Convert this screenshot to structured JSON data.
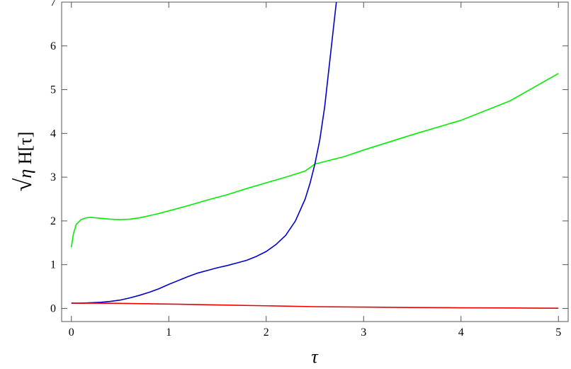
{
  "chart_data": {
    "type": "line",
    "title": "",
    "xlabel": "τ",
    "ylabel": {
      "root_symbol": "√",
      "radicand": "η",
      "rest": " H[τ]"
    },
    "xlim": [
      -0.1,
      5.1
    ],
    "ylim": [
      -0.3,
      7
    ],
    "x_ticks": [
      0,
      1,
      2,
      3,
      4,
      5
    ],
    "y_ticks": [
      0,
      1,
      2,
      3,
      4,
      5,
      6,
      7
    ],
    "grid": false,
    "legend": "none",
    "series": [
      {
        "color": "#00ee00",
        "points": [
          [
            0.0,
            1.4
          ],
          [
            0.02,
            1.7
          ],
          [
            0.05,
            1.92
          ],
          [
            0.1,
            2.03
          ],
          [
            0.15,
            2.07
          ],
          [
            0.2,
            2.08
          ],
          [
            0.3,
            2.06
          ],
          [
            0.4,
            2.04
          ],
          [
            0.5,
            2.03
          ],
          [
            0.6,
            2.04
          ],
          [
            0.7,
            2.07
          ],
          [
            0.8,
            2.12
          ],
          [
            0.9,
            2.17
          ],
          [
            1.0,
            2.23
          ],
          [
            1.2,
            2.35
          ],
          [
            1.4,
            2.48
          ],
          [
            1.6,
            2.6
          ],
          [
            1.8,
            2.74
          ],
          [
            2.0,
            2.87
          ],
          [
            2.2,
            3.0
          ],
          [
            2.4,
            3.14
          ],
          [
            2.5,
            3.3
          ],
          [
            2.8,
            3.47
          ],
          [
            3.0,
            3.62
          ],
          [
            3.5,
            3.97
          ],
          [
            4.0,
            4.3
          ],
          [
            4.5,
            4.74
          ],
          [
            5.0,
            5.37
          ]
        ]
      },
      {
        "color": "#0000cc",
        "points": [
          [
            0.0,
            0.12
          ],
          [
            0.1,
            0.12
          ],
          [
            0.2,
            0.13
          ],
          [
            0.3,
            0.14
          ],
          [
            0.4,
            0.16
          ],
          [
            0.5,
            0.19
          ],
          [
            0.6,
            0.24
          ],
          [
            0.7,
            0.3
          ],
          [
            0.8,
            0.37
          ],
          [
            0.9,
            0.45
          ],
          [
            1.0,
            0.55
          ],
          [
            1.1,
            0.64
          ],
          [
            1.2,
            0.73
          ],
          [
            1.3,
            0.81
          ],
          [
            1.4,
            0.87
          ],
          [
            1.5,
            0.93
          ],
          [
            1.6,
            0.98
          ],
          [
            1.7,
            1.04
          ],
          [
            1.8,
            1.1
          ],
          [
            1.9,
            1.19
          ],
          [
            2.0,
            1.3
          ],
          [
            2.1,
            1.46
          ],
          [
            2.2,
            1.67
          ],
          [
            2.3,
            2.0
          ],
          [
            2.4,
            2.5
          ],
          [
            2.45,
            2.86
          ],
          [
            2.5,
            3.3
          ],
          [
            2.55,
            3.85
          ],
          [
            2.6,
            4.6
          ],
          [
            2.65,
            5.6
          ],
          [
            2.7,
            6.6
          ],
          [
            2.72,
            7.0
          ]
        ]
      },
      {
        "color": "#ee0000",
        "points": [
          [
            0.0,
            0.12
          ],
          [
            0.25,
            0.12
          ],
          [
            0.5,
            0.115
          ],
          [
            1.0,
            0.1
          ],
          [
            1.5,
            0.08
          ],
          [
            2.0,
            0.06
          ],
          [
            2.5,
            0.04
          ],
          [
            3.0,
            0.03
          ],
          [
            3.5,
            0.02
          ],
          [
            4.0,
            0.015
          ],
          [
            4.5,
            0.01
          ],
          [
            5.0,
            0.005
          ]
        ]
      }
    ]
  }
}
